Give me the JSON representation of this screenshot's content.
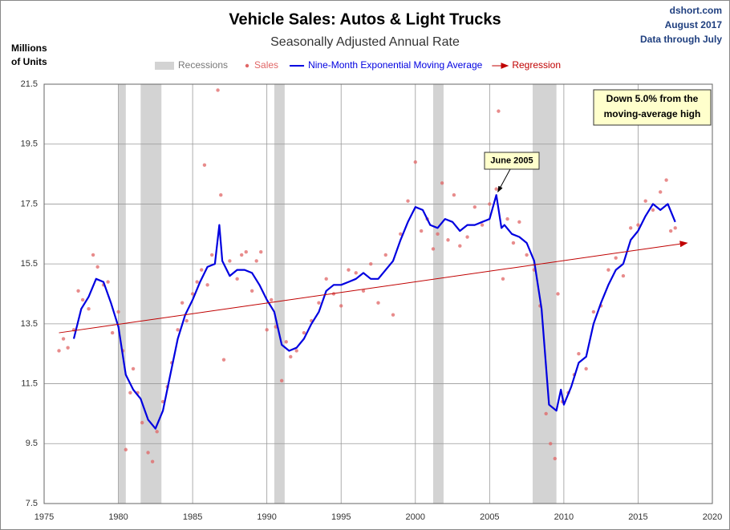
{
  "chart_data": {
    "type": "line",
    "title": "Vehicle Sales: Autos & Light Trucks",
    "subtitle": "Seasonally Adjusted Annual Rate",
    "y_label": [
      "Millions",
      "of Units"
    ],
    "source": [
      "dshort.com",
      "August 2017",
      "Data through July"
    ],
    "xlim": [
      1975,
      2020
    ],
    "xticks": [
      1975,
      1980,
      1985,
      1990,
      1995,
      2000,
      2005,
      2010,
      2015,
      2020
    ],
    "ylim": [
      7.5,
      21.5
    ],
    "yticks": [
      7.5,
      9.5,
      11.5,
      13.5,
      15.5,
      17.5,
      19.5,
      21.5
    ],
    "grid": true,
    "recessions": {
      "name": "Recessions",
      "color": "#d3d3d3",
      "spans": [
        [
          1980.0,
          1980.5
        ],
        [
          1981.5,
          1982.9
        ],
        [
          1990.5,
          1991.2
        ],
        [
          2001.2,
          2001.9
        ],
        [
          2007.9,
          2009.5
        ]
      ]
    },
    "series": [
      {
        "name": "Sales",
        "type": "scatter",
        "color": "#e06666",
        "x": [
          1976.0,
          1976.3,
          1976.6,
          1977.0,
          1977.3,
          1977.6,
          1978.0,
          1978.3,
          1978.6,
          1979.0,
          1979.3,
          1979.6,
          1980.0,
          1980.3,
          1980.5,
          1980.8,
          1981.0,
          1981.3,
          1981.6,
          1982.0,
          1982.3,
          1982.6,
          1983.0,
          1983.3,
          1983.6,
          1984.0,
          1984.3,
          1984.6,
          1985.0,
          1985.3,
          1985.6,
          1985.8,
          1986.0,
          1986.3,
          1986.7,
          1986.9,
          1987.1,
          1987.5,
          1988.0,
          1988.3,
          1988.6,
          1989.0,
          1989.3,
          1989.6,
          1990.0,
          1990.3,
          1990.6,
          1991.0,
          1991.3,
          1991.6,
          1992.0,
          1992.5,
          1993.0,
          1993.5,
          1994.0,
          1994.5,
          1995.0,
          1995.5,
          1996.0,
          1996.5,
          1997.0,
          1997.5,
          1998.0,
          1998.5,
          1999.0,
          1999.5,
          2000.0,
          2000.4,
          2000.8,
          2001.2,
          2001.5,
          2001.8,
          2002.2,
          2002.6,
          2003.0,
          2003.5,
          2004.0,
          2004.5,
          2005.0,
          2005.45,
          2005.6,
          2005.9,
          2006.2,
          2006.6,
          2007.0,
          2007.5,
          2008.0,
          2008.4,
          2008.8,
          2009.1,
          2009.4,
          2009.6,
          2009.9,
          2010.3,
          2010.7,
          2011.0,
          2011.5,
          2012.0,
          2012.5,
          2013.0,
          2013.5,
          2014.0,
          2014.5,
          2015.0,
          2015.5,
          2016.0,
          2016.5,
          2016.9,
          2017.2,
          2017.5
        ],
        "values": [
          12.6,
          13.0,
          12.7,
          13.3,
          14.6,
          14.3,
          14.0,
          15.8,
          15.4,
          14.8,
          14.9,
          13.2,
          13.9,
          12.6,
          9.3,
          11.2,
          12.0,
          11.2,
          10.2,
          9.2,
          8.9,
          9.9,
          10.9,
          11.4,
          12.2,
          13.3,
          14.2,
          13.6,
          14.5,
          14.9,
          15.3,
          18.8,
          14.8,
          15.8,
          21.3,
          17.8,
          12.3,
          15.6,
          15.0,
          15.8,
          15.9,
          14.6,
          15.6,
          15.9,
          13.3,
          14.3,
          13.4,
          11.6,
          12.9,
          12.4,
          12.6,
          13.2,
          13.6,
          14.2,
          15.0,
          14.5,
          14.1,
          15.3,
          15.2,
          14.6,
          15.5,
          14.2,
          15.8,
          13.8,
          16.5,
          17.6,
          18.9,
          16.6,
          17.0,
          16.0,
          16.5,
          18.2,
          16.3,
          17.8,
          16.1,
          16.4,
          17.4,
          16.8,
          17.5,
          18.0,
          20.6,
          15.0,
          17.0,
          16.2,
          16.9,
          15.8,
          15.3,
          14.1,
          10.5,
          9.5,
          9.0,
          14.5,
          10.9,
          11.2,
          11.8,
          12.5,
          12.0,
          13.9,
          14.1,
          15.3,
          15.7,
          15.1,
          16.7,
          16.8,
          17.6,
          17.3,
          17.9,
          18.3,
          16.6,
          16.7
        ]
      },
      {
        "name": "Nine-Month Exponential Moving Average",
        "type": "line",
        "color": "#0000e0",
        "x": [
          1977.0,
          1977.5,
          1978.0,
          1978.5,
          1979.0,
          1979.5,
          1980.0,
          1980.5,
          1981.0,
          1981.5,
          1982.0,
          1982.5,
          1983.0,
          1983.5,
          1984.0,
          1984.5,
          1985.0,
          1985.5,
          1986.0,
          1986.5,
          1986.8,
          1987.0,
          1987.5,
          1988.0,
          1988.5,
          1989.0,
          1989.5,
          1990.0,
          1990.5,
          1991.0,
          1991.5,
          1992.0,
          1992.5,
          1993.0,
          1993.5,
          1994.0,
          1994.5,
          1995.0,
          1995.5,
          1996.0,
          1996.5,
          1997.0,
          1997.5,
          1998.0,
          1998.5,
          1999.0,
          1999.5,
          2000.0,
          2000.5,
          2001.0,
          2001.5,
          2002.0,
          2002.5,
          2003.0,
          2003.5,
          2004.0,
          2004.5,
          2005.0,
          2005.45,
          2005.8,
          2006.0,
          2006.5,
          2007.0,
          2007.5,
          2008.0,
          2008.5,
          2009.0,
          2009.5,
          2009.8,
          2010.0,
          2010.5,
          2011.0,
          2011.5,
          2012.0,
          2012.5,
          2013.0,
          2013.5,
          2014.0,
          2014.5,
          2015.0,
          2015.5,
          2016.0,
          2016.5,
          2017.0,
          2017.5
        ],
        "values": [
          13.0,
          14.0,
          14.4,
          15.0,
          14.9,
          14.2,
          13.4,
          11.8,
          11.3,
          11.0,
          10.3,
          10.0,
          10.6,
          11.8,
          13.0,
          13.8,
          14.3,
          14.9,
          15.4,
          15.5,
          16.8,
          15.6,
          15.1,
          15.3,
          15.3,
          15.2,
          14.8,
          14.3,
          13.9,
          12.8,
          12.6,
          12.7,
          13.0,
          13.5,
          13.9,
          14.6,
          14.8,
          14.8,
          14.9,
          15.0,
          15.2,
          15.0,
          15.0,
          15.3,
          15.6,
          16.3,
          16.9,
          17.4,
          17.3,
          16.8,
          16.7,
          17.0,
          16.9,
          16.6,
          16.8,
          16.8,
          16.9,
          17.0,
          17.8,
          16.7,
          16.8,
          16.5,
          16.4,
          16.2,
          15.6,
          14.0,
          10.8,
          10.6,
          11.3,
          10.8,
          11.4,
          12.2,
          12.4,
          13.5,
          14.2,
          14.8,
          15.3,
          15.5,
          16.3,
          16.6,
          17.1,
          17.5,
          17.3,
          17.5,
          16.9
        ]
      },
      {
        "name": "Regression",
        "type": "arrow",
        "color": "#c00000",
        "x": [
          1976.0,
          2018.3
        ],
        "values": [
          13.2,
          16.2
        ]
      }
    ],
    "annotations": [
      {
        "text": [
          "June 2005"
        ],
        "x": 2005.45,
        "y": 17.8
      },
      {
        "text": [
          "Down 5.0% from the",
          "moving-average high"
        ]
      }
    ]
  }
}
